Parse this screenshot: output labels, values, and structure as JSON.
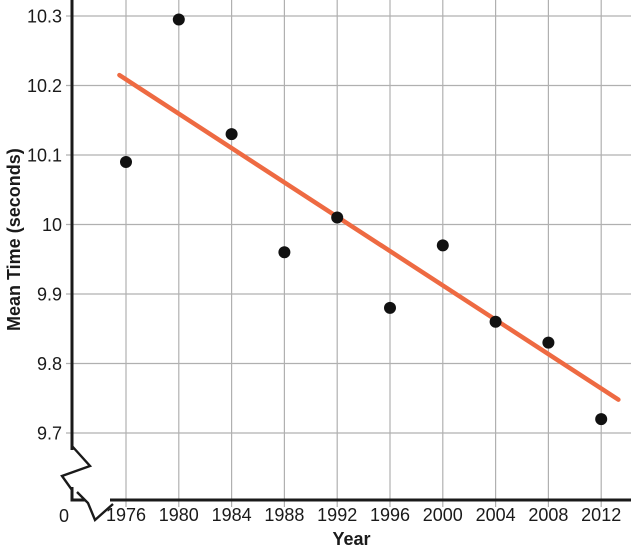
{
  "chart_data": {
    "type": "scatter",
    "title": "",
    "xlabel": "Year",
    "ylabel": "Mean Time (seconds)",
    "x": [
      1976,
      1980,
      1984,
      1988,
      1992,
      1996,
      2000,
      2004,
      2008,
      2012
    ],
    "y": [
      10.09,
      10.295,
      10.13,
      9.96,
      10.01,
      9.88,
      9.97,
      9.86,
      9.83,
      9.72
    ],
    "x_tick_labels": [
      "1976",
      "1980",
      "1984",
      "1988",
      "1992",
      "1996",
      "2000",
      "2004",
      "2008",
      "2012"
    ],
    "y_ticks": [
      9.7,
      9.8,
      9.9,
      10.0,
      10.1,
      10.2,
      10.3
    ],
    "y_tick_labels": [
      "9.7",
      "9.8",
      "9.9",
      "10",
      "10.1",
      "10.2",
      "10.3"
    ],
    "origin_label": "0",
    "axis_breaks": {
      "x": true,
      "y": true
    },
    "grid": true,
    "legend": "none",
    "xlim": [
      1972,
      2014
    ],
    "ylim": [
      9.7,
      10.3
    ],
    "trendline": {
      "x1": 1975.5,
      "y1": 10.215,
      "x2": 2013.3,
      "y2": 9.748
    },
    "colors": {
      "point": "#111111",
      "trendline": "#ee6a42",
      "grid": "#b0b0b0",
      "axis": "#1a1a1a",
      "text": "#1a1a1a"
    }
  }
}
